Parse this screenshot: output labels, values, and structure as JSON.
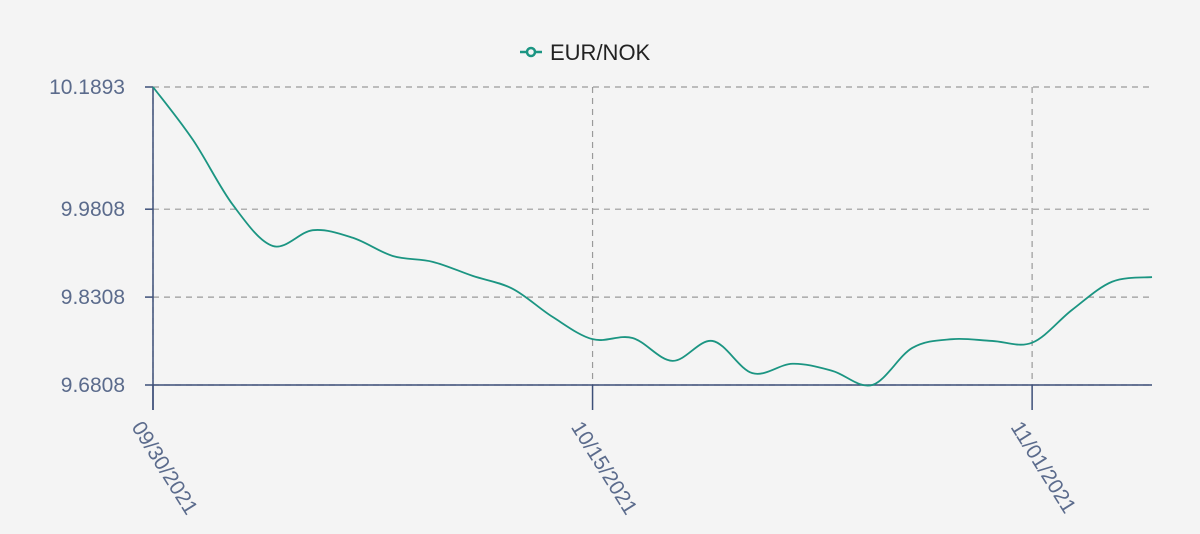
{
  "chart_data": {
    "type": "line",
    "categories": [
      "09/30/2021",
      null,
      null,
      null,
      null,
      null,
      null,
      null,
      null,
      null,
      null,
      "10/15/2021",
      null,
      null,
      null,
      null,
      null,
      null,
      null,
      null,
      null,
      null,
      "11/01/2021",
      null,
      null,
      null
    ],
    "series": [
      {
        "name": "EUR/NOK",
        "color": "#1b9582",
        "values": [
          10.1893,
          10.099,
          9.988,
          9.918,
          9.945,
          9.932,
          9.901,
          9.891,
          9.867,
          9.845,
          9.797,
          9.759,
          9.761,
          9.722,
          9.756,
          9.701,
          9.717,
          9.705,
          9.6808,
          9.744,
          9.759,
          9.756,
          9.753,
          9.809,
          9.857,
          9.865
        ]
      }
    ],
    "ylim": [
      9.6808,
      10.1893
    ],
    "yticks": [
      9.6808,
      9.8308,
      9.9808,
      10.1893
    ],
    "grid": true,
    "legend": "top"
  }
}
